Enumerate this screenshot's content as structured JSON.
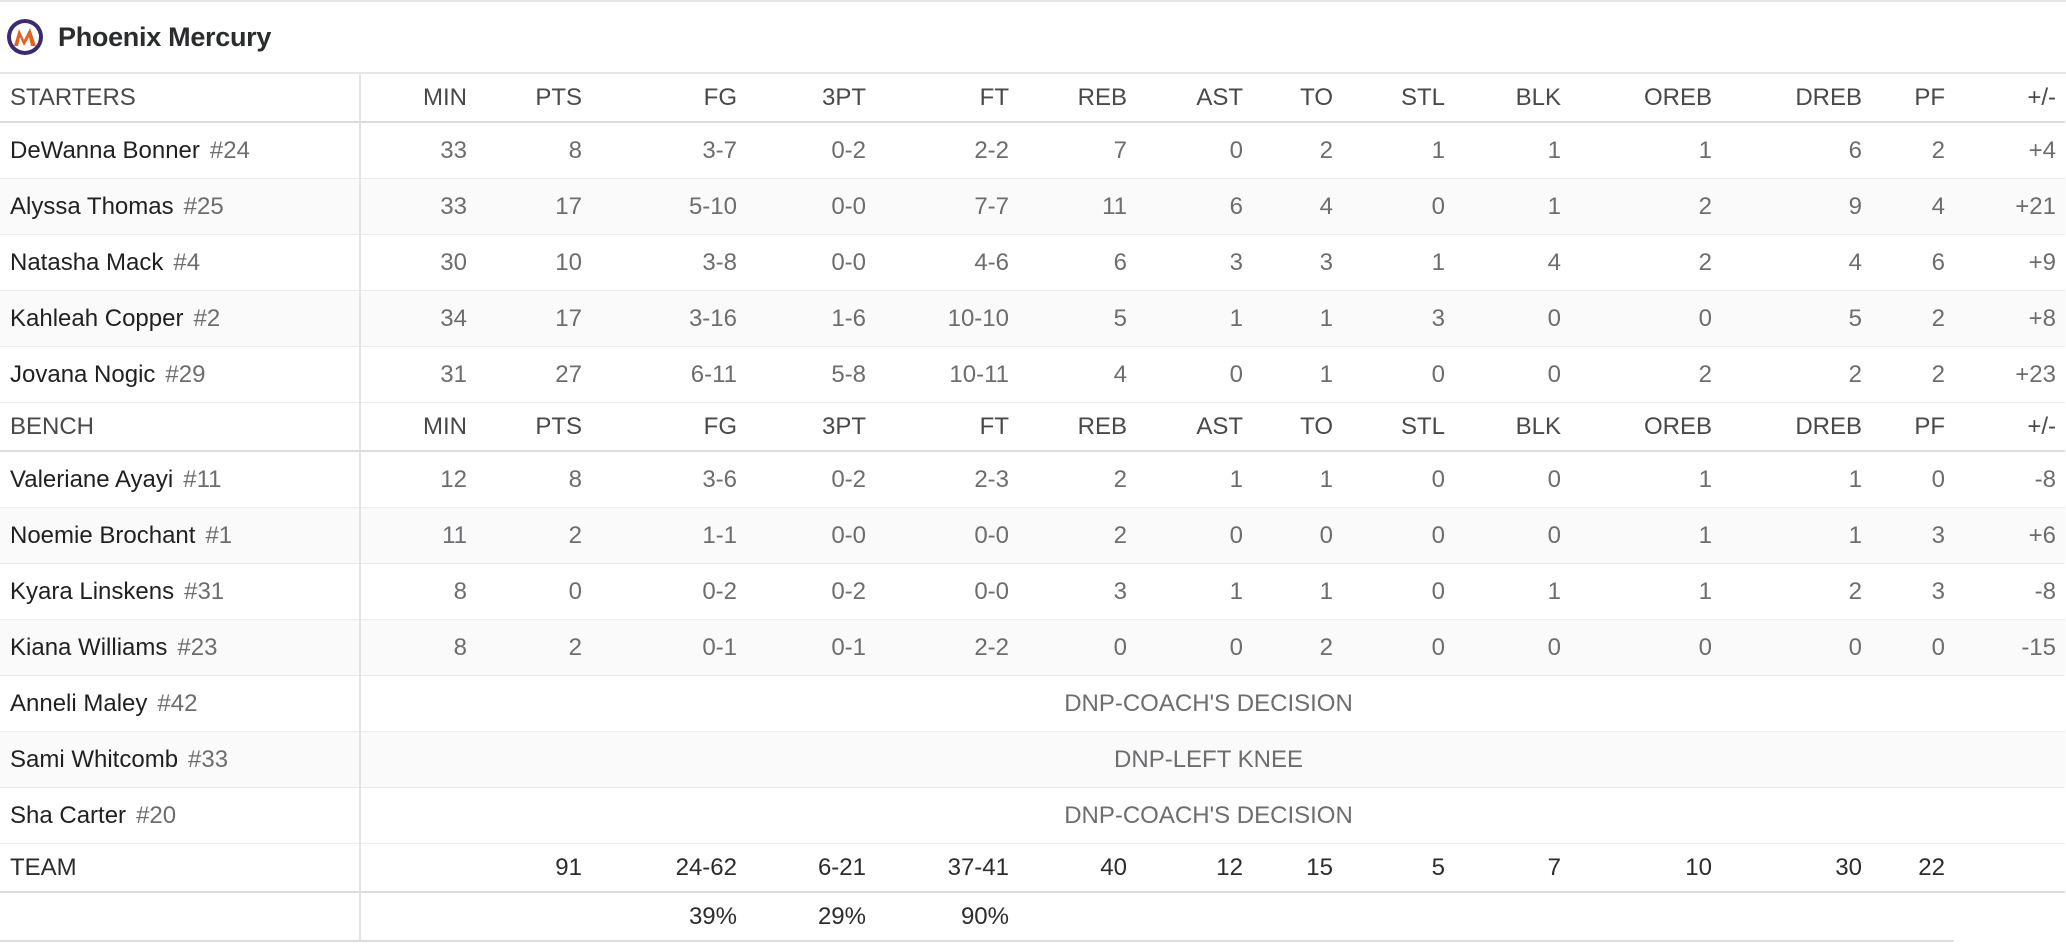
{
  "header": {
    "title": "Phoenix Mercury"
  },
  "table": {
    "columns": [
      "MIN",
      "PTS",
      "FG",
      "3PT",
      "FT",
      "REB",
      "AST",
      "TO",
      "STL",
      "BLK",
      "OREB",
      "DREB",
      "PF",
      "+/-"
    ],
    "sections": [
      {
        "label": "STARTERS",
        "players": [
          {
            "name": "DeWanna Bonner",
            "number": "#24",
            "stats": [
              "33",
              "8",
              "3-7",
              "0-2",
              "2-2",
              "7",
              "0",
              "2",
              "1",
              "1",
              "1",
              "6",
              "2",
              "+4"
            ]
          },
          {
            "name": "Alyssa Thomas",
            "number": "#25",
            "stats": [
              "33",
              "17",
              "5-10",
              "0-0",
              "7-7",
              "11",
              "6",
              "4",
              "0",
              "1",
              "2",
              "9",
              "4",
              "+21"
            ]
          },
          {
            "name": "Natasha Mack",
            "number": "#4",
            "stats": [
              "30",
              "10",
              "3-8",
              "0-0",
              "4-6",
              "6",
              "3",
              "3",
              "1",
              "4",
              "2",
              "4",
              "6",
              "+9"
            ]
          },
          {
            "name": "Kahleah Copper",
            "number": "#2",
            "stats": [
              "34",
              "17",
              "3-16",
              "1-6",
              "10-10",
              "5",
              "1",
              "1",
              "3",
              "0",
              "0",
              "5",
              "2",
              "+8"
            ]
          },
          {
            "name": "Jovana Nogic",
            "number": "#29",
            "stats": [
              "31",
              "27",
              "6-11",
              "5-8",
              "10-11",
              "4",
              "0",
              "1",
              "0",
              "0",
              "2",
              "2",
              "2",
              "+23"
            ]
          }
        ]
      },
      {
        "label": "BENCH",
        "players": [
          {
            "name": "Valeriane Ayayi",
            "number": "#11",
            "stats": [
              "12",
              "8",
              "3-6",
              "0-2",
              "2-3",
              "2",
              "1",
              "1",
              "0",
              "0",
              "1",
              "1",
              "0",
              "-8"
            ]
          },
          {
            "name": "Noemie Brochant",
            "number": "#1",
            "stats": [
              "11",
              "2",
              "1-1",
              "0-0",
              "0-0",
              "2",
              "0",
              "0",
              "0",
              "0",
              "1",
              "1",
              "3",
              "+6"
            ]
          },
          {
            "name": "Kyara Linskens",
            "number": "#31",
            "stats": [
              "8",
              "0",
              "0-2",
              "0-2",
              "0-0",
              "3",
              "1",
              "1",
              "0",
              "1",
              "1",
              "2",
              "3",
              "-8"
            ]
          },
          {
            "name": "Kiana Williams",
            "number": "#23",
            "stats": [
              "8",
              "2",
              "0-1",
              "0-1",
              "2-2",
              "0",
              "0",
              "2",
              "0",
              "0",
              "0",
              "0",
              "0",
              "-15"
            ]
          },
          {
            "name": "Anneli Maley",
            "number": "#42",
            "dnp": "DNP-COACH'S DECISION"
          },
          {
            "name": "Sami Whitcomb",
            "number": "#33",
            "dnp": "DNP-LEFT KNEE"
          },
          {
            "name": "Sha Carter",
            "number": "#20",
            "dnp": "DNP-COACH'S DECISION"
          }
        ]
      }
    ],
    "totals": {
      "label": "TEAM",
      "stats": [
        "91",
        "24-62",
        "6-21",
        "37-41",
        "40",
        "12",
        "15",
        "5",
        "7",
        "10",
        "30",
        "22"
      ],
      "percentages": [
        "39%",
        "29%",
        "90%"
      ]
    }
  }
}
